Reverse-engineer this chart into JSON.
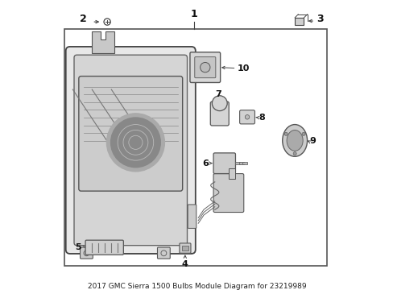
{
  "title": "2017 GMC Sierra 1500 Bulbs Module Diagram for 23219989",
  "bg_color": "#ffffff",
  "border_color": "#555555",
  "line_color": "#333333",
  "label_color": "#111111"
}
